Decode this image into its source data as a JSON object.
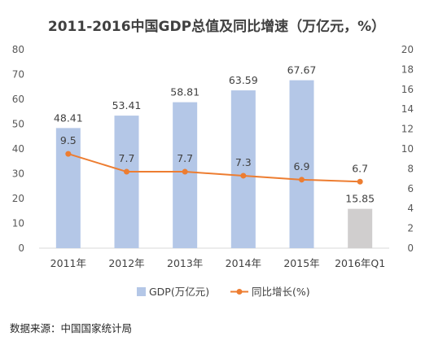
{
  "title": "2011-2016中国GDP总值及同比增速（万亿元，%）",
  "source": "数据来源：中国国家统计局",
  "chart_data": {
    "type": "bar",
    "categories": [
      "2011年",
      "2012年",
      "2013年",
      "2014年",
      "2015年",
      "2016年Q1"
    ],
    "series": [
      {
        "name": "GDP(万亿元)",
        "kind": "bar",
        "axis": "left",
        "values": [
          48.41,
          53.41,
          58.81,
          63.59,
          67.67,
          15.85
        ],
        "color": "#B4C7E7",
        "highlight_color": "#D0CECE"
      },
      {
        "name": "同比增长(%)",
        "kind": "line",
        "axis": "right",
        "values": [
          9.5,
          7.7,
          7.7,
          7.3,
          6.9,
          6.7
        ],
        "color": "#ED7D31"
      }
    ],
    "left_axis": {
      "ylim": [
        0,
        80
      ],
      "ticks": [
        "0",
        "10",
        "20",
        "30",
        "40",
        "50",
        "60",
        "70",
        "80"
      ]
    },
    "right_axis": {
      "ylim": [
        0,
        20
      ],
      "ticks": [
        "0",
        "2",
        "4",
        "6",
        "8",
        "10",
        "12",
        "14",
        "16",
        "18",
        "20"
      ]
    },
    "grid": false,
    "legend": "bottom"
  }
}
